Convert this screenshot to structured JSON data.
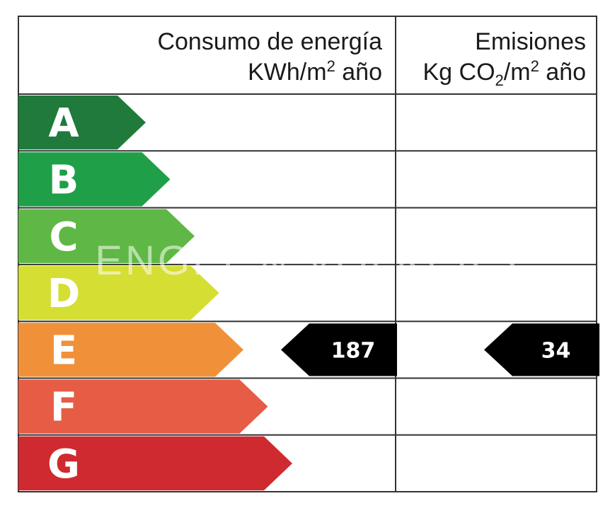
{
  "header": {
    "energy_line1": "Consumo de energía",
    "energy_line2_main": "KWh/m",
    "energy_line2_sup": "2",
    "energy_line2_tail": " año",
    "emissions_line1": "Emisiones",
    "emissions_line2_a": "Kg CO",
    "emissions_line2_sub": "2",
    "emissions_line2_b": "/m",
    "emissions_line2_sup": "2",
    "emissions_line2_tail": " año"
  },
  "classes": [
    {
      "letter": "A",
      "color": "#1f7a3c"
    },
    {
      "letter": "B",
      "color": "#1fa048"
    },
    {
      "letter": "C",
      "color": "#5fb845"
    },
    {
      "letter": "D",
      "color": "#d5de33"
    },
    {
      "letter": "E",
      "color": "#f0913a"
    },
    {
      "letter": "F",
      "color": "#e65c45"
    },
    {
      "letter": "G",
      "color": "#cf2a2f"
    }
  ],
  "rating": {
    "class_index": 4,
    "energy_value": "187",
    "emissions_value": "34",
    "marker_color": "#000000"
  },
  "watermark": "ENGEL & VÖLKERS"
}
